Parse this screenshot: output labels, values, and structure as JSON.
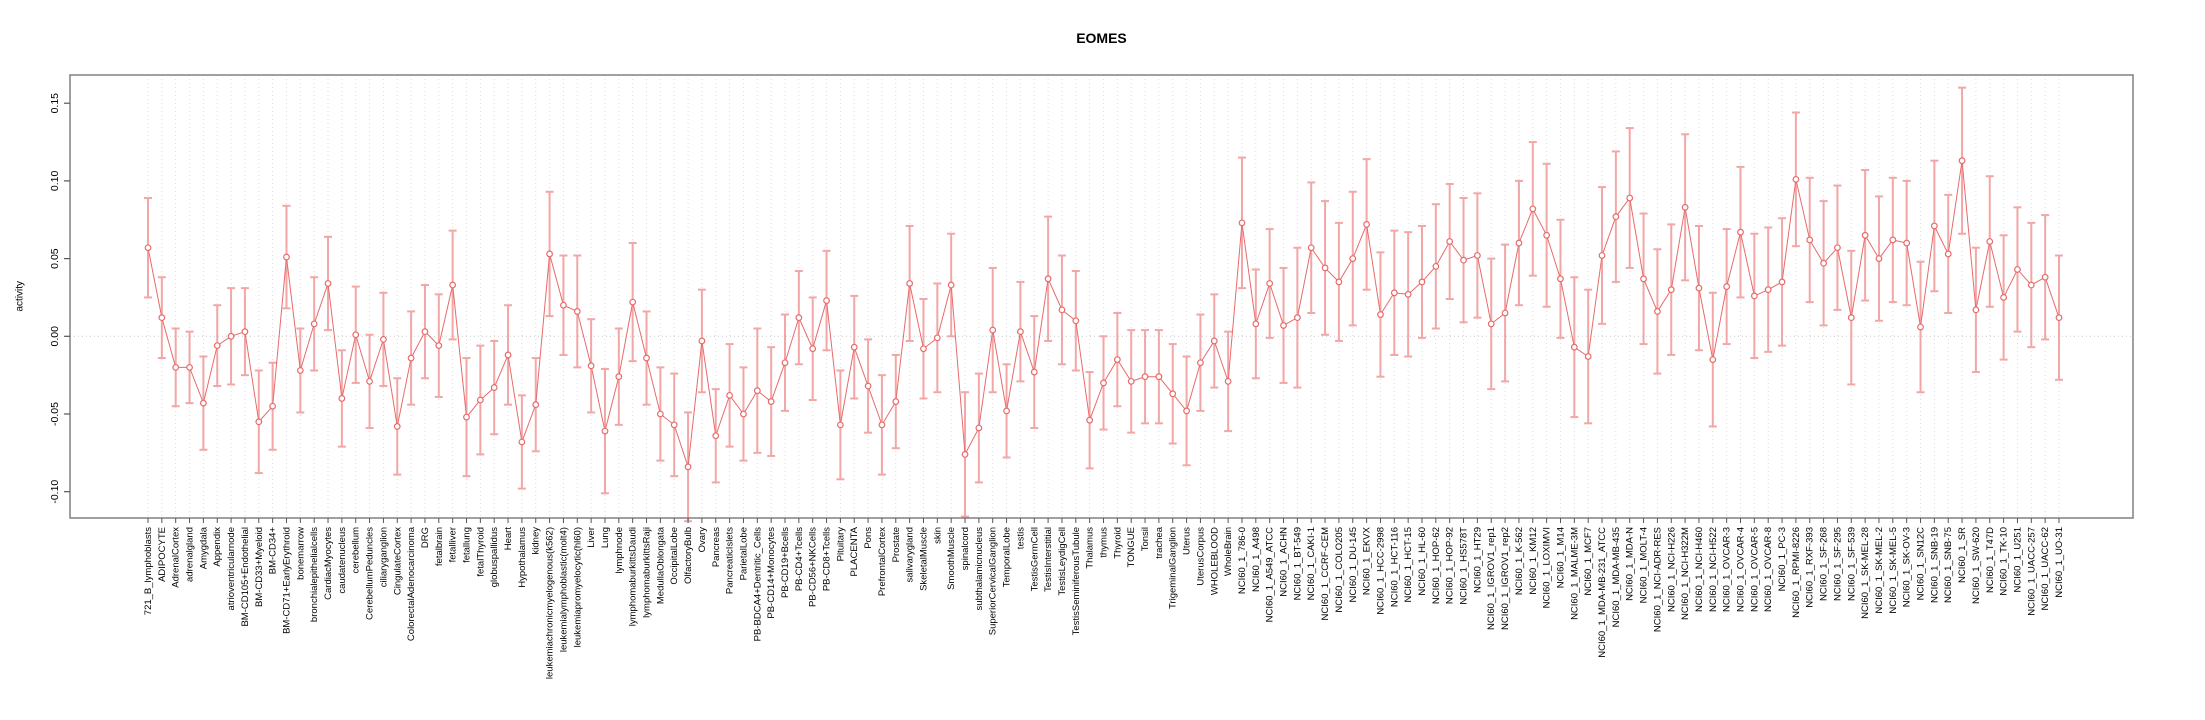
{
  "window": {
    "title": "EOMES activity plot"
  },
  "chart_data": {
    "type": "line",
    "title": "EOMES",
    "xlabel": "",
    "ylabel": "activity",
    "ylim": [
      -0.117,
      0.168
    ],
    "yticks": [
      0.15,
      0.1,
      0.05,
      0.0,
      -0.05,
      -0.1
    ],
    "ytick_labels": [
      "0.15",
      "0.10",
      "0.05",
      "0.00",
      "-0.05",
      "-0.10"
    ],
    "grid": "vertical dotted gridline at every category; horizontal dotted line at y=0",
    "legend_position": "none",
    "series_color": "#e86a6a",
    "errorbar_color": "#f2a6a6",
    "grid_color": "#dcdcdc",
    "zero_line_color": "#c8c8c8",
    "box_color": "#808080",
    "categories": [
      "721_B_lymphoblasts",
      "ADIPOCYTE",
      "AdrenalCortex",
      "adrenalgland",
      "Amygdala",
      "Appendix",
      "atrioventricularnode",
      "BM-CD105+Endothelial",
      "BM-CD33+Myeloid",
      "BM-CD34+",
      "BM-CD71+EarlyErythroid",
      "bonemarrow",
      "bronchialepithelialcells",
      "CardiacMyocytes",
      "caudatenucleus",
      "cerebellum",
      "CerebellumPeduncles",
      "ciliaryganglion",
      "CingulateCortex",
      "ColorectalAdenocarcinoma",
      "DRG",
      "fetalbrain",
      "fetalliver",
      "fetallung",
      "fetalThyroid",
      "globuspallidus",
      "Heart",
      "Hypothalamus",
      "kidney",
      "leukemiachronicmyelogenous(k562)",
      "leukemialymphoblastic(molt4)",
      "leukemiapromyelocytic(hl60)",
      "Liver",
      "Lung",
      "lymphnode",
      "lymphomaburkittsDaudi",
      "lymphomaburkittsRaji",
      "MedullaOblongata",
      "OccipitalLobe",
      "OlfactoryBulb",
      "Ovary",
      "Pancreas",
      "PancreaticIslets",
      "ParietalLobe",
      "PB-BDCA4+Dentritic_Cells",
      "PB-CD14+Monocytes",
      "PB-CD19+Bcells",
      "PB-CD4+Tcells",
      "PB-CD56+NKCells",
      "PB-CD8+Tcells",
      "Pituitary",
      "PLACENTA",
      "Pons",
      "PrefrontalCortex",
      "Prostate",
      "salivarygland",
      "SkeletalMuscle",
      "skin",
      "SmoothMuscle",
      "spinalcord",
      "subthalamicnucleus",
      "SuperiorCervicalGanglion",
      "TemporalLobe",
      "testis",
      "TestisGermCell",
      "TestisInterstitial",
      "TestisLeydigCell",
      "TestisSeminiferousTubule",
      "Thalamus",
      "thymus",
      "Thyroid",
      "TONGUE",
      "Tonsil",
      "trachea",
      "TrigeminalGanglion",
      "Uterus",
      "UterusCorpus",
      "WHOLEBLOOD",
      "WholeBrain",
      "NCI60_1_786-0",
      "NCI60_1_A498",
      "NCI60_1_A549_ATCC",
      "NCI60_1_ACHN",
      "NCI60_1_BT-549",
      "NCI60_1_CAKI-1",
      "NCI60_1_CCRF-CEM",
      "NCI60_1_COLO205",
      "NCI60_1_DU-145",
      "NCI60_1_EKVX",
      "NCI60_1_HCC-2998",
      "NCI60_1_HCT-116",
      "NCI60_1_HCT-15",
      "NCI60_1_HL-60",
      "NCI60_1_HOP-62",
      "NCI60_1_HOP-92",
      "NCI60_1_HS578T",
      "NCI60_1_HT29",
      "NCI60_1_IGROV1_rep1",
      "NCI60_1_IGROV1_rep2",
      "NCI60_1_K-562",
      "NCI60_1_KM12",
      "NCI60_1_LOXIMVI",
      "NCI60_1_M14",
      "NCI60_1_MALME-3M",
      "NCI60_1_MCF7",
      "NCI60_1_MDA-MB-231_ATCC",
      "NCI60_1_MDA-MB-435",
      "NCI60_1_MDA-N",
      "NCI60_1_MOLT-4",
      "NCI60_1_NCI-ADR-RES",
      "NCI60_1_NCI-H226",
      "NCI60_1_NCI-H322M",
      "NCI60_1_NCI-H460",
      "NCI60_1_NCI-H522",
      "NCI60_1_OVCAR-3",
      "NCI60_1_OVCAR-4",
      "NCI60_1_OVCAR-5",
      "NCI60_1_OVCAR-8",
      "NCI60_1_PC-3",
      "NCI60_1_RPMI-8226",
      "NCI60_1_RXF-393",
      "NCI60_1_SF-268",
      "NCI60_1_SF-295",
      "NCI60_1_SF-539",
      "NCI60_1_SK-MEL-28",
      "NCI60_1_SK-MEL-2",
      "NCI60_1_SK-MEL-5",
      "NCI60_1_SK-OV-3",
      "NCI60_1_SN12C",
      "NCI60_1_SNB-19",
      "NCI60_1_SNB-75",
      "NCI60_1_SR",
      "NCI60_1_SW-620",
      "NCI60_1_T47D",
      "NCI60_1_TK-10",
      "NCI60_1_U251",
      "NCI60_1_UACC-257",
      "NCI60_1_UACC-62",
      "NCI60_1_UO-31"
    ],
    "values": [
      0.057,
      0.012,
      -0.02,
      -0.02,
      -0.043,
      -0.006,
      0.0,
      0.003,
      -0.055,
      -0.045,
      0.051,
      -0.022,
      0.008,
      0.034,
      -0.04,
      0.001,
      -0.029,
      -0.002,
      -0.058,
      -0.014,
      0.003,
      -0.006,
      0.033,
      -0.052,
      -0.041,
      -0.033,
      -0.012,
      -0.068,
      -0.044,
      0.053,
      0.02,
      0.016,
      -0.019,
      -0.061,
      -0.026,
      0.022,
      -0.014,
      -0.05,
      -0.057,
      -0.084,
      -0.003,
      -0.064,
      -0.038,
      -0.05,
      -0.035,
      -0.042,
      -0.017,
      0.012,
      -0.008,
      0.023,
      -0.057,
      -0.007,
      -0.032,
      -0.057,
      -0.042,
      0.034,
      -0.008,
      -0.001,
      0.033,
      -0.076,
      -0.059,
      0.004,
      -0.048,
      0.003,
      -0.023,
      0.037,
      0.017,
      0.01,
      -0.054,
      -0.03,
      -0.015,
      -0.029,
      -0.026,
      -0.026,
      -0.037,
      -0.048,
      -0.017,
      -0.003,
      -0.029,
      0.073,
      0.008,
      0.034,
      0.007,
      0.012,
      0.057,
      0.044,
      0.035,
      0.05,
      0.072,
      0.014,
      0.028,
      0.027,
      0.035,
      0.045,
      0.061,
      0.049,
      0.052,
      0.008,
      0.015,
      0.06,
      0.082,
      0.065,
      0.037,
      -0.007,
      -0.013,
      0.052,
      0.077,
      0.089,
      0.037,
      0.016,
      0.03,
      0.083,
      0.031,
      -0.015,
      0.032,
      0.067,
      0.026,
      0.03,
      0.035,
      0.101,
      0.062,
      0.047,
      0.057,
      0.012,
      0.065,
      0.05,
      0.062,
      0.06,
      0.006,
      0.071,
      0.053,
      0.113,
      0.017,
      0.061,
      0.025,
      0.043,
      0.033,
      0.038,
      0.012
    ],
    "errors": [
      0.032,
      0.026,
      0.025,
      0.023,
      0.03,
      0.026,
      0.031,
      0.028,
      0.033,
      0.028,
      0.033,
      0.027,
      0.03,
      0.03,
      0.031,
      0.031,
      0.03,
      0.03,
      0.031,
      0.03,
      0.03,
      0.033,
      0.035,
      0.038,
      0.035,
      0.03,
      0.032,
      0.03,
      0.03,
      0.04,
      0.032,
      0.036,
      0.03,
      0.04,
      0.031,
      0.038,
      0.03,
      0.03,
      0.033,
      0.035,
      0.033,
      0.03,
      0.033,
      0.03,
      0.04,
      0.035,
      0.031,
      0.03,
      0.033,
      0.032,
      0.035,
      0.033,
      0.03,
      0.032,
      0.03,
      0.037,
      0.032,
      0.035,
      0.033,
      0.04,
      0.035,
      0.04,
      0.03,
      0.032,
      0.036,
      0.04,
      0.035,
      0.032,
      0.031,
      0.03,
      0.03,
      0.033,
      0.03,
      0.03,
      0.032,
      0.035,
      0.031,
      0.03,
      0.032,
      0.042,
      0.035,
      0.035,
      0.037,
      0.045,
      0.042,
      0.043,
      0.038,
      0.043,
      0.042,
      0.04,
      0.04,
      0.04,
      0.036,
      0.04,
      0.037,
      0.04,
      0.04,
      0.042,
      0.044,
      0.04,
      0.043,
      0.046,
      0.038,
      0.045,
      0.043,
      0.044,
      0.042,
      0.045,
      0.042,
      0.04,
      0.042,
      0.047,
      0.04,
      0.043,
      0.037,
      0.042,
      0.04,
      0.04,
      0.041,
      0.043,
      0.04,
      0.04,
      0.04,
      0.043,
      0.042,
      0.04,
      0.04,
      0.04,
      0.042,
      0.042,
      0.038,
      0.047,
      0.04,
      0.042,
      0.04,
      0.04,
      0.04,
      0.04,
      0.04
    ]
  }
}
